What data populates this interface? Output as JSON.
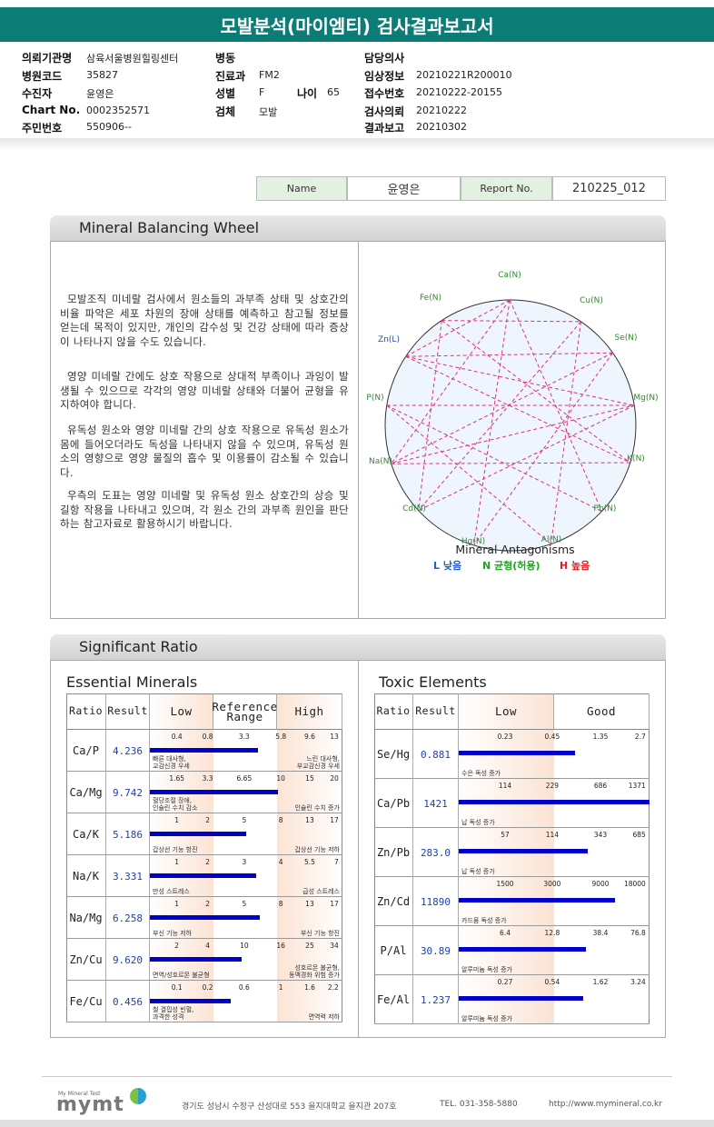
{
  "header": {
    "title": "모발분석(마이엠티) 검사결과보고서"
  },
  "info": {
    "left": [
      {
        "label": "의뢰기관명",
        "value": "삼육서울병원힐링센터"
      },
      {
        "label": "병원코드",
        "value": "35827"
      },
      {
        "label": "수진자",
        "value": "윤영은"
      },
      {
        "label": "Chart No.",
        "value": "0002352571"
      },
      {
        "label": "주민번호",
        "value": "550906--"
      }
    ],
    "middle": [
      {
        "label": "병동"
      },
      {
        "label": "진료과",
        "value": "FM2"
      },
      {
        "label": "성별",
        "value": "F",
        "extra_label": "나이",
        "extra_value": "65"
      },
      {
        "label": "검체",
        "value": "모발"
      }
    ],
    "right": [
      {
        "label": "담당의사"
      },
      {
        "label": "임상정보",
        "value": "20210221R200010"
      },
      {
        "label": "접수번호",
        "value": "20210222-20155"
      },
      {
        "label": "검사의뢰",
        "value": "20210222"
      },
      {
        "label": "결과보고",
        "value": "20210302"
      }
    ]
  },
  "name_box": {
    "name_label": "Name",
    "name": "윤영은",
    "report_label": "Report No.",
    "report_no": "210225_012"
  },
  "wheel_section": {
    "title": "Mineral Balancing Wheel",
    "paragraphs": [
      "모발조직 미네랄 검사에서 원소들의 과부족 상태 및 상호간의 비율 파악은 세포 차원의 장애 상태를 예측하고 참고될 정보를 얻는데 목적이 있지만, 개인의 감수성 및 건강 상태에 따라 증상이 나타나지 않을 수도 있습니다.",
      "영양 미네랄 간에도 상호 작용으로 상대적 부족이나 과잉이 발생될 수 있으므로 각각의 영양 미네랄 상태와 더불어 균형을 유지하여야 합니다.",
      "유독성 원소와 영양 미네랄 간의 상호 작용으로 유독성 원소가 몸에 들어오더라도 독성을 나타내지 않을 수 있으며, 유독성 원소의 영향으로 영양 물질의 흡수 및 이용률이 감소될 수 있습니다.",
      "우측의 도표는 영양 미네랄 및 유독성 원소 상호간의 상승 및 길항 작용을 나타내고 있으며, 각 원소 간의 과부족 원인을 판단하는 참고자료로 활용하시기 바랍니다."
    ],
    "chart_title": "Mineral Antagonisms",
    "elements": [
      {
        "label": "Ca(N)",
        "color": "#2e8b2e"
      },
      {
        "label": "Cu(N)",
        "color": "#2e8b2e"
      },
      {
        "label": "Se(N)",
        "color": "#2e8b2e"
      },
      {
        "label": "Mg(N)",
        "color": "#2e8b2e"
      },
      {
        "label": "K(N)",
        "color": "#2e8b2e"
      },
      {
        "label": "Pb(N)",
        "color": "#2e8b2e"
      },
      {
        "label": "Al(N)",
        "color": "#2e8b2e"
      },
      {
        "label": "Hg(N)",
        "color": "#2e8b2e"
      },
      {
        "label": "Cd(N)",
        "color": "#2e8b2e"
      },
      {
        "label": "Na(N)",
        "color": "#2e8b2e"
      },
      {
        "label": "P(N)",
        "color": "#2e8b2e"
      },
      {
        "label": "Zn(L)",
        "color": "#1f4fc0"
      },
      {
        "label": "Fe(N)",
        "color": "#2e8b2e"
      }
    ],
    "legend": [
      {
        "text": "L 낮음",
        "color": "#1f5fd0"
      },
      {
        "text": "N 균형(허용)",
        "color": "#22a022"
      },
      {
        "text": "H 높음",
        "color": "#e02020"
      }
    ]
  },
  "ratio_section": {
    "title": "Significant Ratio",
    "essential": {
      "title": "Essential Minerals",
      "headers": [
        "Ratio",
        "Result",
        "Low",
        "Reference Range",
        "High"
      ],
      "rows": [
        {
          "ratio": "Ca/P",
          "result": 4.236,
          "ticks": [
            0.4,
            0.8,
            3.3,
            5.8,
            9.6,
            13
          ],
          "low_note": "빠른 대사형,\n교감신경 우세",
          "high_note": "느린 대사형,\n부교감신경 우세"
        },
        {
          "ratio": "Ca/Mg",
          "result": 9.742,
          "ticks": [
            1.65,
            3.3,
            6.65,
            10,
            15,
            20
          ],
          "low_note": "혈당조절 장애,\n인슐린 수치 감소",
          "high_note": "인슐린 수치 증가"
        },
        {
          "ratio": "Ca/K",
          "result": 5.186,
          "ticks": [
            1,
            2,
            5,
            8,
            13,
            17
          ],
          "low_note": "갑상선 기능 항진",
          "high_note": "갑상선 기능 저하"
        },
        {
          "ratio": "Na/K",
          "result": 3.331,
          "ticks": [
            1,
            2,
            3,
            4,
            5.5,
            7
          ],
          "low_note": "만성 스트레스",
          "high_note": "급성 스트레스"
        },
        {
          "ratio": "Na/Mg",
          "result": 6.258,
          "ticks": [
            1,
            2,
            5,
            8,
            13,
            17
          ],
          "low_note": "부신 기능 저하",
          "high_note": "부신 기능 항진"
        },
        {
          "ratio": "Zn/Cu",
          "result": 9.62,
          "result_label": "9.620",
          "ticks": [
            2,
            4,
            10,
            16,
            25,
            34
          ],
          "low_note": "면역/성호르몬 불균형",
          "high_note": "성호르몬 불균형,\n동맥경화 위험 증가"
        },
        {
          "ratio": "Fe/Cu",
          "result": 0.456,
          "ticks": [
            0.1,
            0.2,
            0.6,
            1,
            1.6,
            2.2
          ],
          "low_note": "철 결핍성 빈혈,\n과격한 성격",
          "high_note": "면역력 저하"
        }
      ]
    },
    "toxic": {
      "title": "Toxic Elements",
      "headers": [
        "Ratio",
        "Result",
        "Low",
        "Good"
      ],
      "rows": [
        {
          "ratio": "Se/Hg",
          "result": 0.881,
          "ticks": [
            0.23,
            0.45,
            1.35,
            2.7
          ],
          "low_note": "수은 독성 증가"
        },
        {
          "ratio": "Ca/Pb",
          "result": 1421,
          "ticks": [
            114,
            229,
            686,
            1371
          ],
          "low_note": "납 독성 증가"
        },
        {
          "ratio": "Zn/Pb",
          "result": 283,
          "result_label": "283.0",
          "ticks": [
            57,
            114,
            343,
            685
          ],
          "low_note": "납 독성 증가"
        },
        {
          "ratio": "Zn/Cd",
          "result": 11890,
          "ticks": [
            1500,
            3000,
            9000,
            18000
          ],
          "low_note": "카드뮴 독성 증가"
        },
        {
          "ratio": "P/Al",
          "result": 30.89,
          "ticks": [
            6.4,
            12.8,
            38.4,
            76.8
          ],
          "low_note": "알루미늄 독성 증가"
        },
        {
          "ratio": "Fe/Al",
          "result": 1.237,
          "ticks": [
            0.27,
            0.54,
            1.62,
            3.24
          ],
          "low_note": "알루미늄 독성 증가"
        }
      ]
    }
  },
  "footer": {
    "logo_tagline": "My Mineral Test",
    "logo": "mymt",
    "address": "경기도 성남시 수정구 산성대로 553 을지대학교 을지관 207호",
    "tel": "TEL. 031-358-5880",
    "url": "http://www.mymineral.co.kr"
  }
}
